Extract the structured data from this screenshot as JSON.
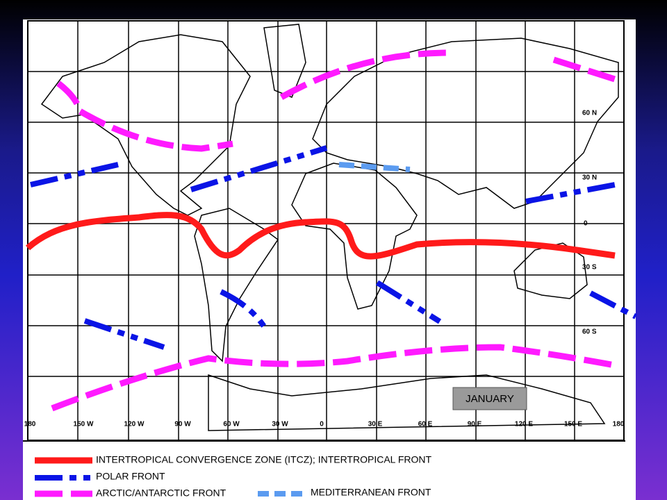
{
  "map": {
    "lat_labels": [
      "60 N",
      "30 N",
      "0",
      "30 S",
      "60 S"
    ],
    "lon_labels": [
      "180",
      "150 W",
      "120 W",
      "90 W",
      "60 W",
      "30 W",
      "0",
      "30 E",
      "60 E",
      "90 E",
      "120 E",
      "150 E",
      "180"
    ],
    "month": "JANUARY"
  },
  "legend": [
    {
      "label": "INTERTROPICAL CONVERGENCE ZONE (ITCZ); INTERTROPICAL FRONT"
    },
    {
      "label": "POLAR FRONT"
    },
    {
      "label": "ARCTIC/ANTARCTIC FRONT"
    },
    {
      "label": "MEDITERRANEAN FRONT"
    }
  ]
}
